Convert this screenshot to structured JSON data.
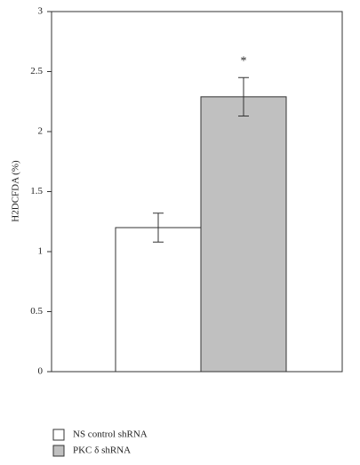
{
  "chart_data": {
    "type": "bar",
    "y_label": "H2DCFDA (%)",
    "annotation": "*",
    "categories": [
      null
    ],
    "series": [
      {
        "name": "NS control shRNA",
        "color": "#ffffff",
        "values": [
          1.2
        ],
        "errors": [
          0.12
        ]
      },
      {
        "name": "PKC δ shRNA",
        "color": "#c0c0c0",
        "values": [
          2.29
        ],
        "errors": [
          0.16
        ]
      }
    ],
    "ylim": [
      0,
      3
    ],
    "yticks": [
      0,
      0.5,
      1,
      1.5,
      2,
      2.5,
      3
    ]
  }
}
